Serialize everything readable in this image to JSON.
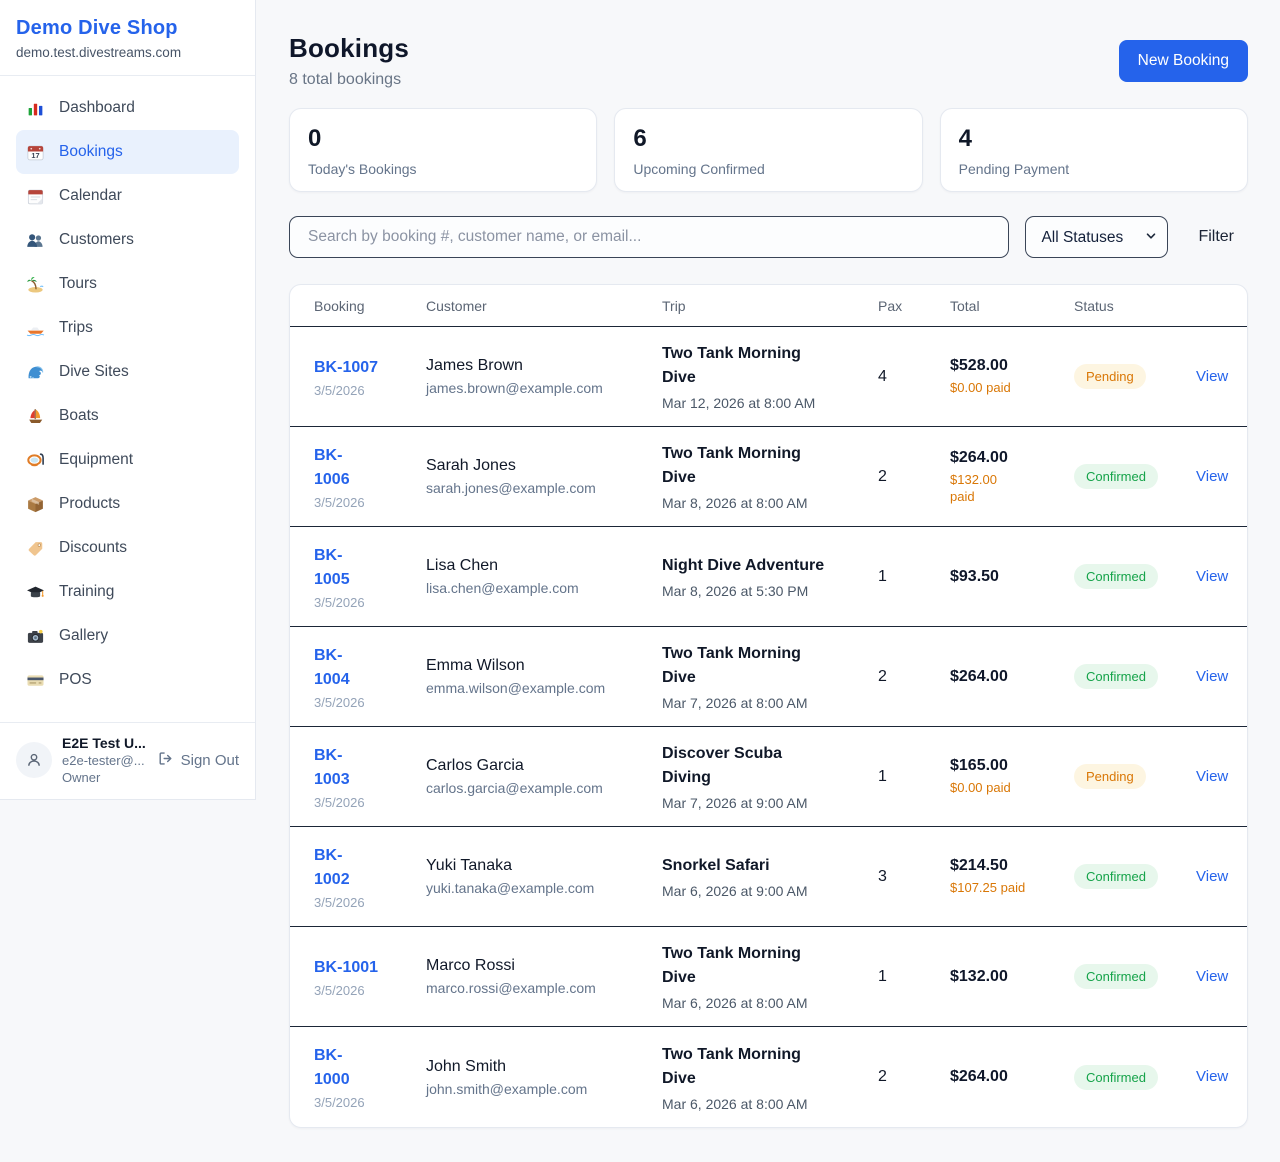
{
  "colors": {
    "accent": "#2563eb",
    "warn": "#d97706",
    "ok": "#16a34a",
    "divider": "#1b2637",
    "pending_bg": "#fdf5e1",
    "confirmed_bg": "#e7f7ec"
  },
  "sidebar": {
    "shop_name": "Demo Dive Shop",
    "domain": "demo.test.divestreams.com",
    "items": [
      {
        "label": "Dashboard",
        "icon": "bar-chart-icon",
        "active": false
      },
      {
        "label": "Bookings",
        "icon": "calendar-date-icon",
        "active": true
      },
      {
        "label": "Calendar",
        "icon": "calendar-icon",
        "active": false
      },
      {
        "label": "Customers",
        "icon": "people-icon",
        "active": false
      },
      {
        "label": "Tours",
        "icon": "island-icon",
        "active": false
      },
      {
        "label": "Trips",
        "icon": "speedboat-icon",
        "active": false
      },
      {
        "label": "Dive Sites",
        "icon": "wave-icon",
        "active": false
      },
      {
        "label": "Boats",
        "icon": "sailboat-icon",
        "active": false
      },
      {
        "label": "Equipment",
        "icon": "dive-mask-icon",
        "active": false
      },
      {
        "label": "Products",
        "icon": "package-icon",
        "active": false
      },
      {
        "label": "Discounts",
        "icon": "tag-icon",
        "active": false
      },
      {
        "label": "Training",
        "icon": "grad-cap-icon",
        "active": false
      },
      {
        "label": "Gallery",
        "icon": "camera-icon",
        "active": false
      },
      {
        "label": "POS",
        "icon": "credit-card-icon",
        "active": false
      }
    ],
    "user": {
      "name": "E2E Test U...",
      "email": "e2e-tester@...",
      "role": "Owner",
      "sign_out_label": "Sign Out"
    }
  },
  "header": {
    "title": "Bookings",
    "subtitle": "8 total bookings",
    "new_booking_label": "New Booking"
  },
  "stats": [
    {
      "value": "0",
      "label": "Today's Bookings",
      "color": "#0f172a"
    },
    {
      "value": "6",
      "label": "Upcoming Confirmed",
      "color": "#0f172a"
    },
    {
      "value": "4",
      "label": "Pending Payment",
      "color": "#d97706"
    }
  ],
  "filters": {
    "search_placeholder": "Search by booking #, customer name, or email...",
    "status_selected": "All Statuses",
    "filter_label": "Filter"
  },
  "table": {
    "columns": [
      "Booking",
      "Customer",
      "Trip",
      "Pax",
      "Total",
      "Status"
    ],
    "view_label": "View",
    "rows": [
      {
        "id": "BK-1007",
        "date": "3/5/2026",
        "customer": "James Brown",
        "email": "james.brown@example.com",
        "trip": "Two Tank Morning\nDive",
        "trip_datetime": "Mar 12, 2026 at 8:00 AM",
        "pax": "4",
        "total": "$528.00",
        "paid": "$0.00 paid",
        "status": "Pending"
      },
      {
        "id": "BK-\n1006",
        "date": "3/5/2026",
        "customer": "Sarah Jones",
        "email": "sarah.jones@example.com",
        "trip": "Two Tank Morning\nDive",
        "trip_datetime": "Mar 8, 2026 at 8:00 AM",
        "pax": "2",
        "total": "$264.00",
        "paid": "$132.00\npaid",
        "status": "Confirmed"
      },
      {
        "id": "BK-\n1005",
        "date": "3/5/2026",
        "customer": "Lisa Chen",
        "email": "lisa.chen@example.com",
        "trip": "Night Dive Adventure",
        "trip_datetime": "Mar 8, 2026 at 5:30 PM",
        "pax": "1",
        "total": "$93.50",
        "paid": null,
        "status": "Confirmed"
      },
      {
        "id": "BK-\n1004",
        "date": "3/5/2026",
        "customer": "Emma Wilson",
        "email": "emma.wilson@example.com",
        "trip": "Two Tank Morning\nDive",
        "trip_datetime": "Mar 7, 2026 at 8:00 AM",
        "pax": "2",
        "total": "$264.00",
        "paid": null,
        "status": "Confirmed"
      },
      {
        "id": "BK-\n1003",
        "date": "3/5/2026",
        "customer": "Carlos Garcia",
        "email": "carlos.garcia@example.com",
        "trip": "Discover Scuba\nDiving",
        "trip_datetime": "Mar 7, 2026 at 9:00 AM",
        "pax": "1",
        "total": "$165.00",
        "paid": "$0.00 paid",
        "status": "Pending"
      },
      {
        "id": "BK-\n1002",
        "date": "3/5/2026",
        "customer": "Yuki Tanaka",
        "email": "yuki.tanaka@example.com",
        "trip": "Snorkel Safari",
        "trip_datetime": "Mar 6, 2026 at 9:00 AM",
        "pax": "3",
        "total": "$214.50",
        "paid": "$107.25 paid",
        "status": "Confirmed"
      },
      {
        "id": "BK-1001",
        "date": "3/5/2026",
        "customer": "Marco Rossi",
        "email": "marco.rossi@example.com",
        "trip": "Two Tank Morning\nDive",
        "trip_datetime": "Mar 6, 2026 at 8:00 AM",
        "pax": "1",
        "total": "$132.00",
        "paid": null,
        "status": "Confirmed"
      },
      {
        "id": "BK-\n1000",
        "date": "3/5/2026",
        "customer": "John Smith",
        "email": "john.smith@example.com",
        "trip": "Two Tank Morning\nDive",
        "trip_datetime": "Mar 6, 2026 at 8:00 AM",
        "pax": "2",
        "total": "$264.00",
        "paid": null,
        "status": "Confirmed"
      }
    ]
  }
}
